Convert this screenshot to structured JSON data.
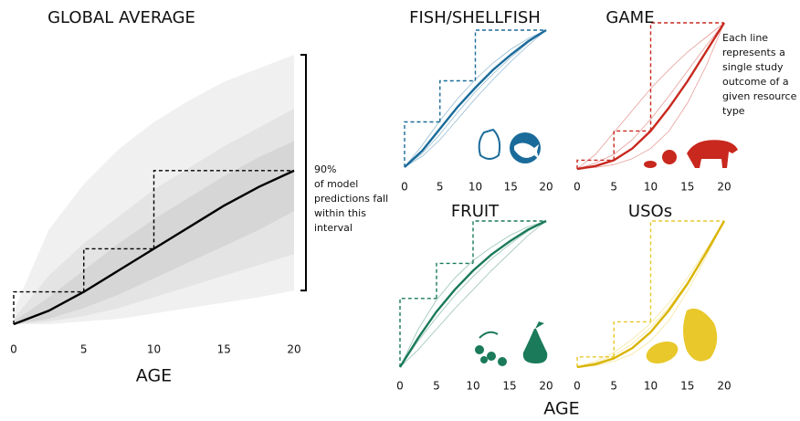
{
  "chart_data": [
    {
      "type": "band",
      "title": "GLOBAL AVERAGE",
      "xlabel": "AGE",
      "x": [
        0,
        2.5,
        5,
        7.5,
        10,
        12.5,
        15,
        17.5,
        20
      ],
      "xlim": [
        0,
        20
      ],
      "xticks": [
        0,
        5,
        10,
        15,
        20
      ],
      "ylim": [
        0,
        1
      ],
      "bands": [
        {
          "color": "#f0f0f0",
          "lower": [
            0,
            0,
            0.01,
            0.02,
            0.04,
            0.06,
            0.08,
            0.1,
            0.125
          ],
          "upper": [
            0.05,
            0.35,
            0.52,
            0.65,
            0.75,
            0.83,
            0.9,
            0.95,
            1.0
          ]
        },
        {
          "color": "#e4e4e4",
          "lower": [
            0,
            0.01,
            0.03,
            0.06,
            0.1,
            0.14,
            0.18,
            0.22,
            0.26
          ],
          "upper": [
            0.02,
            0.18,
            0.3,
            0.4,
            0.5,
            0.58,
            0.66,
            0.73,
            0.8
          ]
        },
        {
          "color": "#d6d6d6",
          "lower": [
            0,
            0.02,
            0.06,
            0.11,
            0.17,
            0.23,
            0.29,
            0.35,
            0.42
          ],
          "upper": [
            0.01,
            0.1,
            0.2,
            0.3,
            0.39,
            0.47,
            0.55,
            0.62,
            0.68
          ]
        }
      ],
      "series": [
        {
          "color": "#000000",
          "values": [
            0,
            0.05,
            0.12,
            0.2,
            0.28,
            0.36,
            0.44,
            0.51,
            0.57
          ]
        }
      ],
      "step_x": [
        0,
        5,
        10,
        20
      ],
      "step_values": [
        0.12,
        0.28,
        0.57
      ],
      "annotation": [
        "90%",
        "of model",
        "predictions fall",
        "within this",
        "interval"
      ]
    },
    {
      "type": "line",
      "title": "FISH/SHELLFISH",
      "color": "#1a6b9a",
      "x": [
        0,
        2.5,
        5,
        7.5,
        10,
        12.5,
        15,
        17.5,
        20
      ],
      "xlim": [
        0,
        20
      ],
      "xticks": [
        0,
        5,
        10,
        15,
        20
      ],
      "ylim": [
        0,
        1
      ],
      "studies": [
        [
          0,
          0.16,
          0.34,
          0.5,
          0.64,
          0.76,
          0.86,
          0.94,
          1
        ],
        [
          0,
          0.08,
          0.2,
          0.35,
          0.5,
          0.64,
          0.77,
          0.89,
          1
        ],
        [
          0,
          0.1,
          0.24,
          0.4,
          0.55,
          0.68,
          0.8,
          0.91,
          1
        ]
      ],
      "series": [
        {
          "color": "#1a6b9a",
          "values": [
            0,
            0.12,
            0.28,
            0.44,
            0.58,
            0.71,
            0.82,
            0.92,
            1
          ]
        }
      ],
      "step_x": [
        0,
        5,
        10,
        20
      ],
      "step_values": [
        0.33,
        0.63,
        1.0
      ]
    },
    {
      "type": "line",
      "title": "GAME",
      "color": "#c8281e",
      "x": [
        0,
        2.5,
        5,
        7.5,
        10,
        12.5,
        15,
        17.5,
        20
      ],
      "xlim": [
        0,
        20
      ],
      "xticks": [
        0,
        5,
        10,
        15,
        20
      ],
      "ylim": [
        0,
        1
      ],
      "studies": [
        [
          0,
          0.1,
          0.25,
          0.4,
          0.55,
          0.68,
          0.8,
          0.9,
          1
        ],
        [
          0,
          0.01,
          0.03,
          0.07,
          0.14,
          0.26,
          0.45,
          0.7,
          1
        ],
        [
          0,
          0.04,
          0.1,
          0.2,
          0.34,
          0.5,
          0.67,
          0.84,
          1
        ]
      ],
      "series": [
        {
          "color": "#c8281e",
          "values": [
            0,
            0.02,
            0.06,
            0.14,
            0.26,
            0.42,
            0.6,
            0.8,
            1
          ]
        }
      ],
      "step_x": [
        0,
        5,
        10,
        20
      ],
      "step_values": [
        0.06,
        0.26,
        1.0
      ],
      "annotation": [
        "Each line",
        "represents a",
        "single study",
        "outcome of a",
        "given resource",
        "type"
      ]
    },
    {
      "type": "line",
      "title": "FRUIT",
      "color": "#1a7a5a",
      "x": [
        0,
        2.5,
        5,
        7.5,
        10,
        12.5,
        15,
        17.5,
        20
      ],
      "xlim": [
        0,
        20
      ],
      "xticks": [
        0,
        5,
        10,
        15,
        20
      ],
      "ylim": [
        0,
        1
      ],
      "studies": [
        [
          0,
          0.26,
          0.46,
          0.61,
          0.73,
          0.82,
          0.9,
          0.96,
          1
        ],
        [
          0,
          0.12,
          0.26,
          0.4,
          0.53,
          0.66,
          0.78,
          0.9,
          1
        ],
        [
          0,
          0.18,
          0.34,
          0.49,
          0.62,
          0.74,
          0.84,
          0.93,
          1
        ]
      ],
      "series": [
        {
          "color": "#1a7a5a",
          "values": [
            0,
            0.2,
            0.38,
            0.53,
            0.66,
            0.77,
            0.86,
            0.94,
            1
          ]
        }
      ],
      "step_x": [
        0,
        5,
        10,
        20
      ],
      "step_values": [
        0.47,
        0.71,
        1.0
      ]
    },
    {
      "type": "line",
      "title": "USOs",
      "color": "#e8c82a",
      "x": [
        0,
        2.5,
        5,
        7.5,
        10,
        12.5,
        15,
        17.5,
        20
      ],
      "xlim": [
        0,
        20
      ],
      "xticks": [
        0,
        5,
        10,
        15,
        20
      ],
      "ylim": [
        0,
        1
      ],
      "studies": [
        [
          0,
          0.04,
          0.1,
          0.19,
          0.3,
          0.44,
          0.61,
          0.8,
          1
        ],
        [
          0,
          0.01,
          0.04,
          0.09,
          0.18,
          0.32,
          0.52,
          0.75,
          1
        ],
        [
          0,
          0.03,
          0.08,
          0.16,
          0.27,
          0.41,
          0.58,
          0.78,
          1
        ]
      ],
      "series": [
        {
          "color": "#d9b400",
          "values": [
            0,
            0.02,
            0.06,
            0.13,
            0.24,
            0.39,
            0.57,
            0.78,
            1
          ]
        }
      ],
      "step_x": [
        0,
        5,
        10,
        20
      ],
      "step_values": [
        0.07,
        0.31,
        1.0
      ]
    }
  ],
  "xlabel": "AGE"
}
